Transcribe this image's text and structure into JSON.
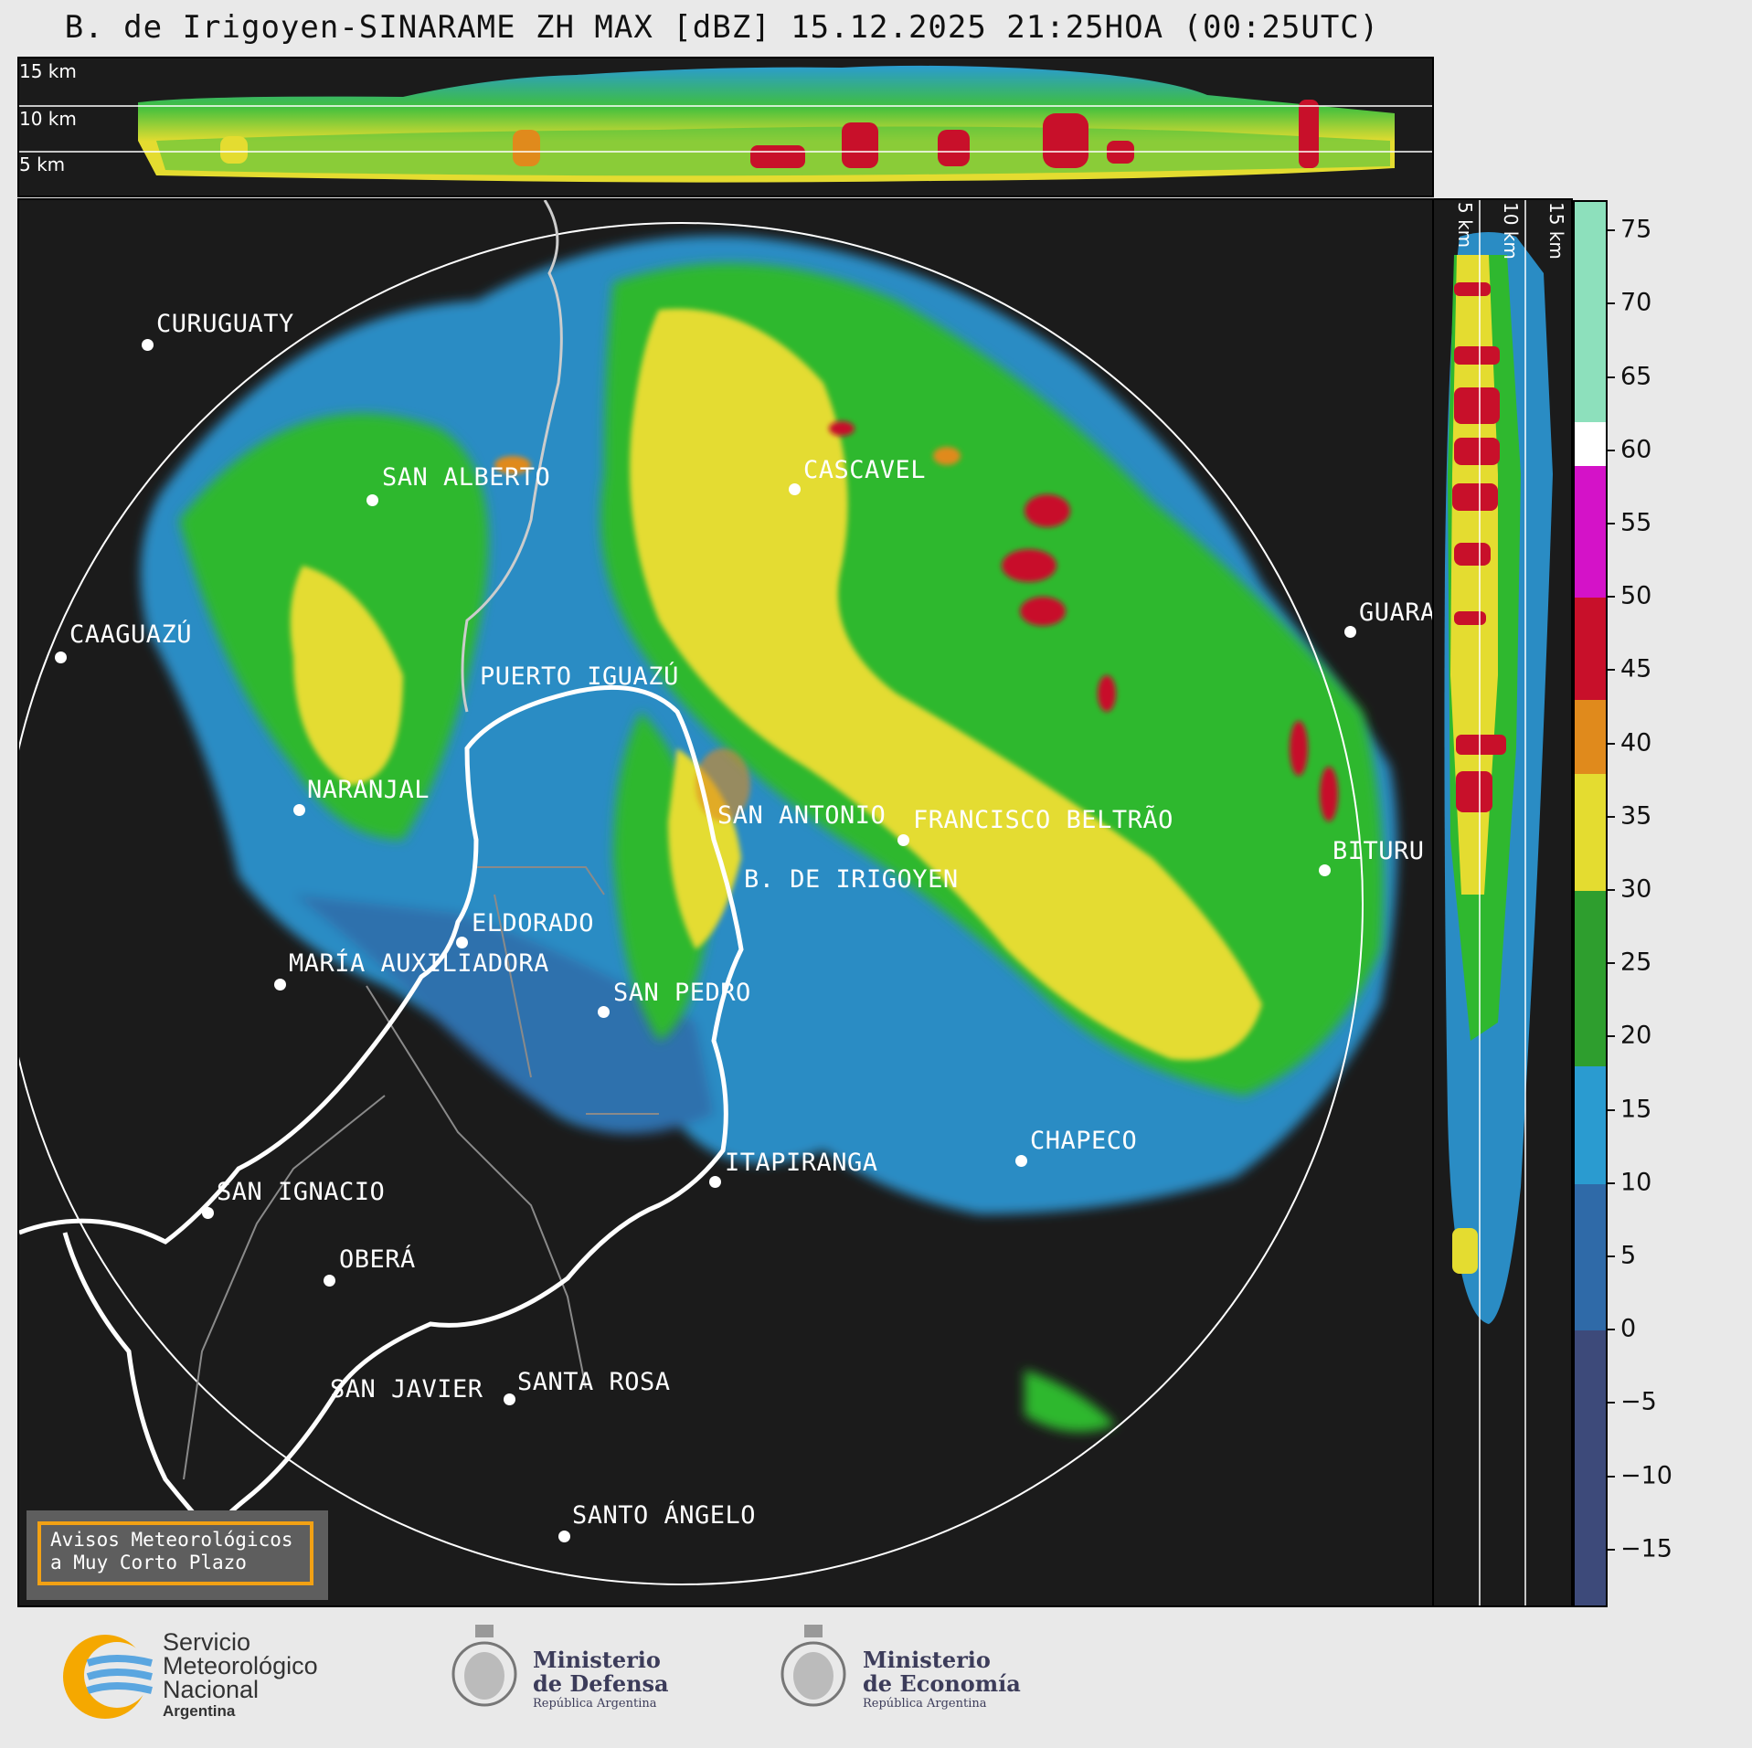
{
  "title": "B. de Irigoyen-SINARAME ZH MAX [dBZ] 15.12.2025 21:25HOA (00:25UTC)",
  "height_labels": {
    "h15": "15 km",
    "h10": "10 km",
    "h5": "5 km"
  },
  "cities": {
    "curuguaty": "CURUGUATY",
    "san_alberto": "SAN ALBERTO",
    "cascavel": "CASCAVEL",
    "caaguazu": "CAAGUAZÚ",
    "guara": "GUARA",
    "puerto_iguazu": "PUERTO IGUAZÚ",
    "naranjal": "NARANJAL",
    "san_antonio": "SAN ANTONIO",
    "francisco_beltrao": "FRANCISCO BELTRÃO",
    "bituru": "BITURU",
    "b_de_irigoyen": "B. DE IRIGOYEN",
    "eldorado": "ELDORADO",
    "maria_auxiliadora": "MARÍA AUXILIADORA",
    "san_pedro": "SAN PEDRO",
    "chapeco": "CHAPECO",
    "itapiranga": "ITAPIRANGA",
    "san_ignacio": "SAN IGNACIO",
    "obera": "OBERÁ",
    "san_javier": "SAN JAVIER",
    "santa_rosa": "SANTA ROSA",
    "santo_angelo": "SANTO ÁNGELO"
  },
  "colorbar": {
    "ticks": [
      "75",
      "70",
      "65",
      "60",
      "55",
      "50",
      "45",
      "40",
      "35",
      "30",
      "25",
      "20",
      "15",
      "10",
      "5",
      "0",
      "−5",
      "−10",
      "−15"
    ],
    "min": -19,
    "max": 77,
    "tick_values": [
      75,
      70,
      65,
      60,
      55,
      50,
      45,
      40,
      35,
      30,
      25,
      20,
      15,
      10,
      5,
      0,
      -5,
      -10,
      -15
    ],
    "colors_by_range": [
      {
        "from": -19,
        "to": 0,
        "color": "#3d4a7a"
      },
      {
        "from": 0,
        "to": 10,
        "color": "#2f6aa8"
      },
      {
        "from": 10,
        "to": 18,
        "color": "#2a9bd0"
      },
      {
        "from": 18,
        "to": 30,
        "color": "#2e9e2e"
      },
      {
        "from": 30,
        "to": 38,
        "color": "#e4dc30"
      },
      {
        "from": 38,
        "to": 43,
        "color": "#e08a1c"
      },
      {
        "from": 43,
        "to": 50,
        "color": "#c8102a"
      },
      {
        "from": 50,
        "to": 59,
        "color": "#d412c8"
      },
      {
        "from": 59,
        "to": 62,
        "color": "#ffffff"
      },
      {
        "from": 62,
        "to": 77,
        "color": "#8de0bc"
      }
    ]
  },
  "aviso": {
    "line1": "Avisos Meteorológicos",
    "line2": "a Muy Corto Plazo"
  },
  "footer": {
    "smn_line1": "Servicio",
    "smn_line2": "Meteorológico",
    "smn_line3": "Nacional",
    "smn_line4": "Argentina",
    "defensa_line1": "Ministerio",
    "defensa_line2": "de Defensa",
    "defensa_line3": "República Argentina",
    "economia_line1": "Ministerio",
    "economia_line2": "de Economía",
    "economia_line3": "República Argentina"
  }
}
